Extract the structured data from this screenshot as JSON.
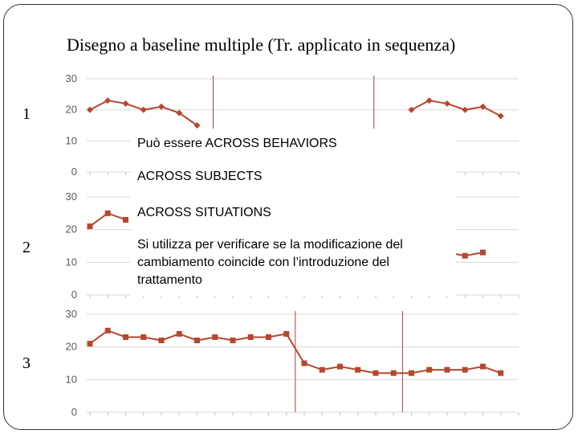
{
  "slide": {
    "title_bullet": "",
    "title": "Disegno a baseline multiple (Tr. applicato in sequenza)"
  },
  "overlay": {
    "line1": "Può essere ACROSS BEHAVIORS",
    "line2": "ACROSS SUBJECTS",
    "line3": "ACROSS SITUATIONS",
    "paragraph": "Si utilizza per verificare se la modificazione del cambiamento coincide con l’introduzione del trattamento"
  },
  "colors": {
    "series": "#b5472e",
    "phase_line": "#a0473a",
    "grid": "#d9d9d9"
  },
  "chart_data": [
    {
      "type": "line",
      "row_label": "1",
      "marker": "diamond",
      "x": [
        1,
        2,
        3,
        4,
        5,
        6,
        7,
        8,
        9,
        10,
        11,
        12,
        13,
        14,
        15,
        16,
        17,
        18,
        19,
        20,
        21,
        22,
        23,
        24,
        25
      ],
      "values": [
        20,
        23,
        22,
        20,
        21,
        19,
        15,
        null,
        null,
        null,
        null,
        null,
        null,
        null,
        null,
        null,
        null,
        null,
        20,
        23,
        22,
        20,
        21,
        18,
        null
      ],
      "ylim": [
        0,
        30
      ],
      "yticks": [
        0,
        10,
        20,
        30
      ],
      "phase_lines_after": [
        7.9,
        16.9
      ]
    },
    {
      "type": "line",
      "row_label": "2",
      "marker": "square",
      "x": [
        1,
        2,
        3,
        4,
        5,
        6,
        7,
        8,
        9,
        10,
        11,
        12,
        13,
        14,
        15,
        16,
        17,
        18,
        19,
        20,
        21,
        22,
        23,
        24,
        25
      ],
      "values": [
        21,
        25,
        23,
        null,
        null,
        null,
        null,
        null,
        null,
        null,
        null,
        null,
        null,
        null,
        null,
        null,
        null,
        null,
        null,
        null,
        13,
        12,
        13,
        null,
        null
      ],
      "ylim": [
        0,
        30
      ],
      "yticks": [
        0,
        10,
        20,
        30
      ],
      "phase_lines_after": []
    },
    {
      "type": "line",
      "row_label": "3",
      "marker": "square",
      "x": [
        1,
        2,
        3,
        4,
        5,
        6,
        7,
        8,
        9,
        10,
        11,
        12,
        13,
        14,
        15,
        16,
        17,
        18,
        19,
        20,
        21,
        22,
        23,
        24,
        25
      ],
      "values": [
        21,
        25,
        23,
        23,
        22,
        24,
        22,
        23,
        22,
        23,
        23,
        24,
        15,
        13,
        14,
        13,
        12,
        12,
        12,
        13,
        13,
        13,
        14,
        12,
        null
      ],
      "ylim": [
        0,
        30
      ],
      "yticks": [
        0,
        10,
        20,
        30
      ],
      "phase_lines_after": [
        12.5,
        18.5
      ]
    }
  ]
}
